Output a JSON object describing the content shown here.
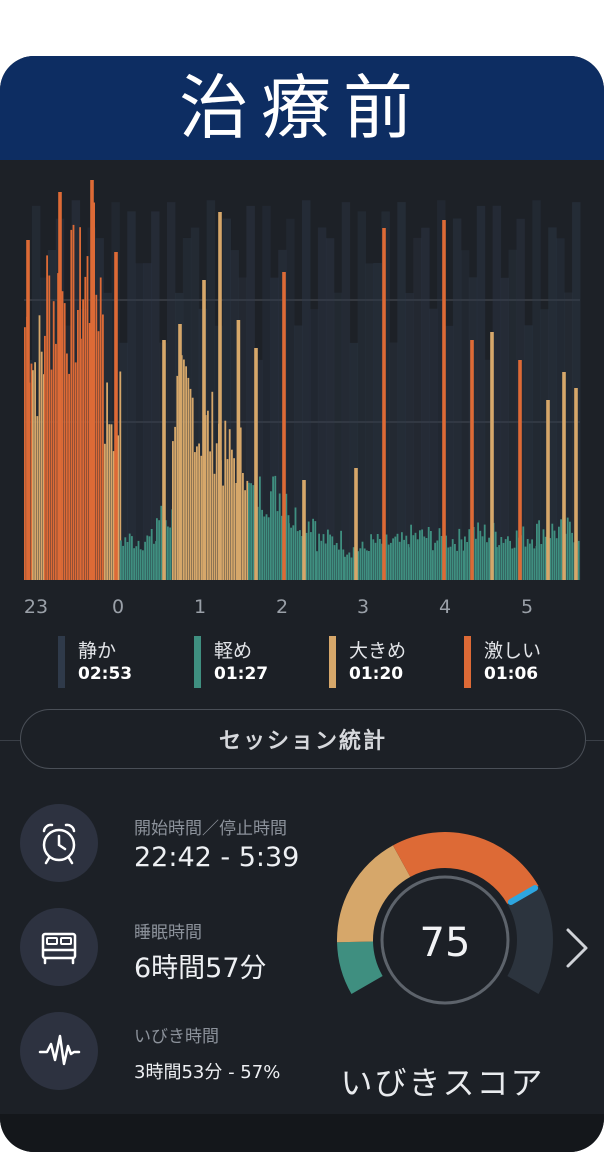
{
  "banner": {
    "title": "治療前"
  },
  "colors": {
    "quiet": "#2f3a4a",
    "light": "#3f8f80",
    "loud": "#d6a76a",
    "epic": "#dd6a36",
    "accent": "#2ea6e0",
    "background": "#1d2127"
  },
  "chart_data": {
    "type": "bar",
    "xlabel": "",
    "ylabel": "",
    "x_ticks": [
      "23",
      "0",
      "1",
      "2",
      "3",
      "4",
      "5"
    ],
    "y_gridlines": 2,
    "series_legend": [
      "静か",
      "軽め",
      "大きめ",
      "激しい"
    ],
    "x_range_hours": [
      22.7,
      5.65
    ],
    "bands": [
      {
        "from": 22.7,
        "to": 22.8,
        "level": "epic",
        "intensity": 0.82
      },
      {
        "from": 22.8,
        "to": 22.95,
        "level": "loud",
        "intensity": 0.7
      },
      {
        "from": 22.95,
        "to": 23.4,
        "level": "epic",
        "intensity": 0.9
      },
      {
        "from": 23.4,
        "to": 23.7,
        "level": "epic",
        "intensity": 0.95
      },
      {
        "from": 23.7,
        "to": 23.9,
        "level": "loud",
        "intensity": 0.55
      },
      {
        "from": 23.9,
        "to": 24.35,
        "level": "light",
        "intensity": 0.13
      },
      {
        "from": 24.35,
        "to": 24.55,
        "level": "light",
        "intensity": 0.2
      },
      {
        "from": 24.55,
        "to": 24.85,
        "level": "loud",
        "intensity": 0.57
      },
      {
        "from": 24.85,
        "to": 25.15,
        "level": "loud",
        "intensity": 0.48
      },
      {
        "from": 25.15,
        "to": 25.5,
        "level": "loud",
        "intensity": 0.4
      },
      {
        "from": 25.5,
        "to": 26.0,
        "level": "light",
        "intensity": 0.28
      },
      {
        "from": 26.0,
        "to": 26.35,
        "level": "light",
        "intensity": 0.2
      },
      {
        "from": 26.35,
        "to": 26.7,
        "level": "light",
        "intensity": 0.13
      },
      {
        "from": 26.7,
        "to": 27.0,
        "level": "light",
        "intensity": 0.1
      },
      {
        "from": 27.0,
        "to": 27.5,
        "level": "light",
        "intensity": 0.12
      },
      {
        "from": 27.5,
        "to": 27.8,
        "level": "light",
        "intensity": 0.14
      },
      {
        "from": 27.8,
        "to": 28.2,
        "level": "light",
        "intensity": 0.13
      },
      {
        "from": 28.2,
        "to": 28.6,
        "level": "light",
        "intensity": 0.15
      },
      {
        "from": 28.6,
        "to": 29.1,
        "level": "light",
        "intensity": 0.14
      },
      {
        "from": 29.1,
        "to": 29.65,
        "level": "light",
        "intensity": 0.16
      }
    ],
    "spikes": [
      {
        "t": 22.75,
        "level": "epic",
        "intensity": 0.85
      },
      {
        "t": 23.15,
        "level": "epic",
        "intensity": 0.97
      },
      {
        "t": 23.55,
        "level": "epic",
        "intensity": 1.0
      },
      {
        "t": 23.85,
        "level": "epic",
        "intensity": 0.82
      },
      {
        "t": 24.45,
        "level": "loud",
        "intensity": 0.6
      },
      {
        "t": 24.65,
        "level": "loud",
        "intensity": 0.64
      },
      {
        "t": 24.95,
        "level": "loud",
        "intensity": 0.75
      },
      {
        "t": 25.15,
        "level": "loud",
        "intensity": 0.92
      },
      {
        "t": 25.38,
        "level": "loud",
        "intensity": 0.65
      },
      {
        "t": 25.6,
        "level": "loud",
        "intensity": 0.58
      },
      {
        "t": 25.95,
        "level": "epic",
        "intensity": 0.77
      },
      {
        "t": 26.2,
        "level": "loud",
        "intensity": 0.25
      },
      {
        "t": 26.85,
        "level": "loud",
        "intensity": 0.28
      },
      {
        "t": 27.2,
        "level": "epic",
        "intensity": 0.88
      },
      {
        "t": 27.95,
        "level": "epic",
        "intensity": 0.9
      },
      {
        "t": 28.3,
        "level": "epic",
        "intensity": 0.6
      },
      {
        "t": 28.55,
        "level": "loud",
        "intensity": 0.62
      },
      {
        "t": 28.9,
        "level": "epic",
        "intensity": 0.55
      },
      {
        "t": 29.25,
        "level": "loud",
        "intensity": 0.45
      },
      {
        "t": 29.45,
        "level": "loud",
        "intensity": 0.52
      },
      {
        "t": 29.6,
        "level": "loud",
        "intensity": 0.48
      }
    ]
  },
  "legend": [
    {
      "name": "静か",
      "time": "02:53",
      "color": "#2f3a4a"
    },
    {
      "name": "軽め",
      "time": "01:27",
      "color": "#3f8f80"
    },
    {
      "name": "大きめ",
      "time": "01:20",
      "color": "#d6a76a"
    },
    {
      "name": "激しい",
      "time": "01:06",
      "color": "#dd6a36"
    }
  ],
  "session": {
    "label": "セッション統計"
  },
  "stats": {
    "start_stop_label": "開始時間／停止時間",
    "start_stop_value": "22:42 - 5:39",
    "sleep_label": "睡眠時間",
    "sleep_value": "6時間57分",
    "snore_label": "いびき時間",
    "snore_value": "3時間53分 - 57%"
  },
  "score": {
    "value": "75",
    "label": "いびきスコア",
    "max": 100,
    "level": 0.75
  },
  "icons": [
    "alarm-clock-icon",
    "bed-icon",
    "waveform-icon",
    "chevron-right-icon"
  ]
}
